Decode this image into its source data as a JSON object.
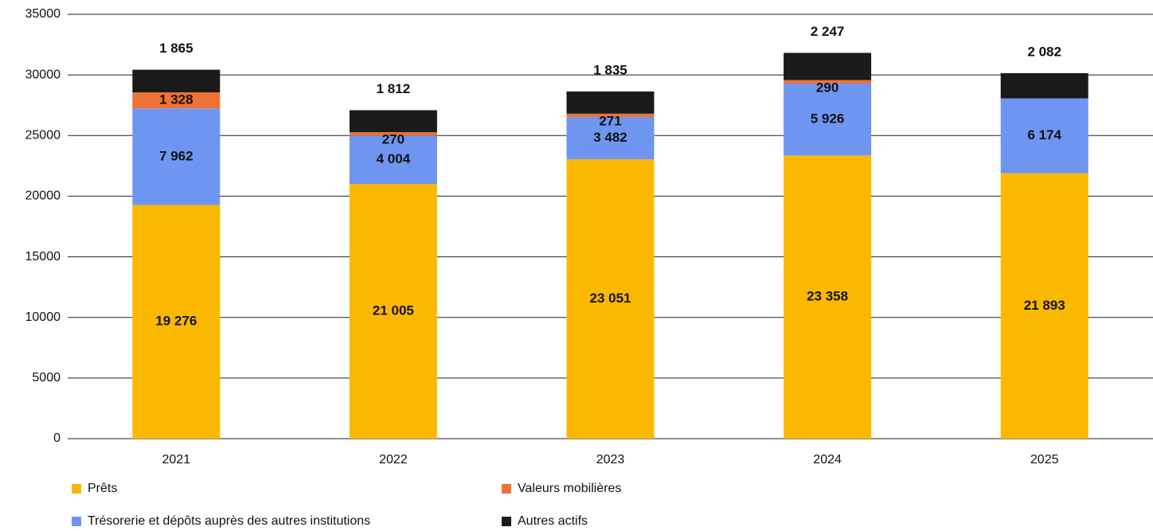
{
  "chart_data": {
    "type": "stacked_bar",
    "categories": [
      "2021",
      "2022",
      "2023",
      "2024",
      "2025"
    ],
    "series": [
      {
        "name": "Prêts",
        "color": "#fbb800",
        "values": [
          19276,
          21005,
          23051,
          23358,
          21893
        ],
        "value_labels": [
          "19 276",
          "21 005",
          "23 051",
          "23 358",
          "21 893"
        ]
      },
      {
        "name": "Trésorerie et dépôts auprès des autres institutions",
        "color": "#6e95f0",
        "values": [
          7962,
          4004,
          3482,
          5926,
          6174
        ],
        "value_labels": [
          "7 962",
          "4 004",
          "3 482",
          "5 926",
          "6 174"
        ]
      },
      {
        "name": "Valeurs mobilières",
        "color": "#ee7136",
        "values": [
          1328,
          270,
          271,
          290,
          null
        ],
        "value_labels": [
          "1 328",
          "270",
          "271",
          "290",
          null
        ]
      },
      {
        "name": "Autres actifs",
        "color": "#1b1b1b",
        "values": [
          1865,
          1812,
          1835,
          2247,
          2082
        ],
        "value_labels": [
          "1 865",
          "1 812",
          "1 835",
          "2 247",
          "2 082"
        ]
      }
    ],
    "ylim": [
      0,
      35000
    ],
    "yticks": [
      0,
      5000,
      10000,
      15000,
      20000,
      25000,
      30000,
      35000
    ],
    "grid": true
  }
}
